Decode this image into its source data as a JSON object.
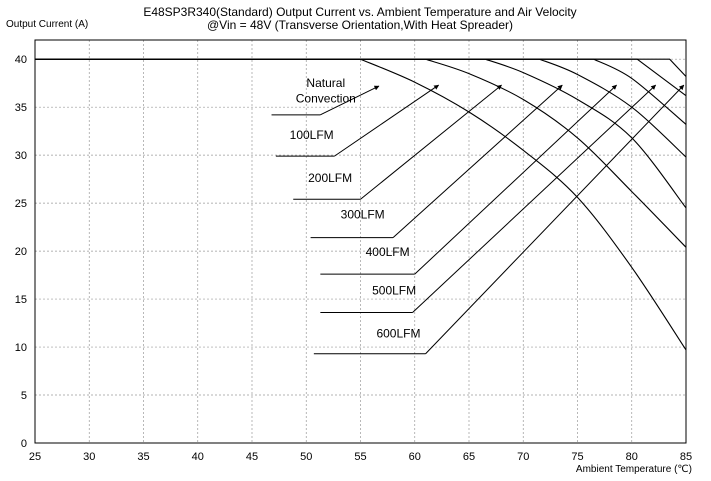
{
  "chart_data": {
    "type": "line",
    "title": "E48SP3R340(Standard)  Output Current vs. Ambient Temperature and Air Velocity",
    "subtitle": "@Vin = 48V (Transverse Orientation,With Heat Spreader)",
    "xlabel": "Ambient Temperature (℃)",
    "ylabel": "Output Current (A)",
    "xlim": [
      25,
      85
    ],
    "ylim": [
      0,
      42
    ],
    "x_ticks": [
      25,
      30,
      35,
      40,
      45,
      50,
      55,
      60,
      65,
      70,
      75,
      80,
      85
    ],
    "y_ticks": [
      0,
      5,
      10,
      15,
      20,
      25,
      30,
      35,
      40
    ],
    "grid": true,
    "legend": "none",
    "series": [
      {
        "name": "Natural Convection",
        "x": [
          25,
          55,
          60,
          65,
          70,
          75,
          80,
          85
        ],
        "y": [
          40,
          40,
          37.6,
          34.5,
          30.5,
          25.6,
          18.3,
          9.7
        ]
      },
      {
        "name": "100LFM",
        "x": [
          25,
          61,
          65,
          70,
          75,
          80,
          85
        ],
        "y": [
          40,
          40,
          38.5,
          35.8,
          31.8,
          26.2,
          20.4
        ]
      },
      {
        "name": "200LFM",
        "x": [
          25,
          66.5,
          70,
          75,
          80,
          85
        ],
        "y": [
          40,
          40,
          38.6,
          35.8,
          31.8,
          24.5
        ]
      },
      {
        "name": "300LFM",
        "x": [
          25,
          71.5,
          75,
          80,
          85
        ],
        "y": [
          40,
          40,
          38.4,
          35,
          29.8
        ]
      },
      {
        "name": "400LFM",
        "x": [
          25,
          76.5,
          80,
          85
        ],
        "y": [
          40,
          40,
          38,
          33.2
        ]
      },
      {
        "name": "500LFM",
        "x": [
          25,
          80.5,
          85
        ],
        "y": [
          40,
          40,
          36.2
        ]
      },
      {
        "name": "600LFM",
        "x": [
          25,
          83.5,
          85
        ],
        "y": [
          40,
          40,
          38.2
        ]
      }
    ],
    "annotations": [
      {
        "text_lines": [
          "Natural",
          "Convection"
        ],
        "text_x": 51.8,
        "text_y": [
          37.1,
          35.5
        ],
        "underline_x": [
          46.8,
          51.3
        ],
        "underline_y": 34.2,
        "leader_to": [
          56.7,
          37.2
        ]
      },
      {
        "text_lines": [
          "100LFM"
        ],
        "text_x": 50.5,
        "text_y": [
          31.7
        ],
        "underline_x": [
          47.2,
          52.6
        ],
        "underline_y": 29.9,
        "leader_to": [
          62.2,
          37.3
        ]
      },
      {
        "text_lines": [
          "200LFM"
        ],
        "text_x": 52.2,
        "text_y": [
          27.2
        ],
        "underline_x": [
          48.8,
          55.0
        ],
        "underline_y": 25.4,
        "leader_to": [
          68.0,
          37.3
        ]
      },
      {
        "text_lines": [
          "300LFM"
        ],
        "text_x": 55.2,
        "text_y": [
          23.4
        ],
        "underline_x": [
          50.4,
          58.0
        ],
        "underline_y": 21.4,
        "leader_to": [
          73.6,
          37.3
        ]
      },
      {
        "text_lines": [
          "400LFM"
        ],
        "text_x": 57.5,
        "text_y": [
          19.5
        ],
        "underline_x": [
          51.3,
          60.0
        ],
        "underline_y": 17.6,
        "leader_to": [
          78.6,
          37.3
        ]
      },
      {
        "text_lines": [
          "500LFM"
        ],
        "text_x": 58.1,
        "text_y": [
          15.5
        ],
        "underline_x": [
          51.3,
          59.8
        ],
        "underline_y": 13.6,
        "leader_to": [
          82.2,
          37.3
        ]
      },
      {
        "text_lines": [
          "600LFM"
        ],
        "text_x": 58.5,
        "text_y": [
          11.0
        ],
        "underline_x": [
          50.7,
          61.0
        ],
        "underline_y": 9.3,
        "leader_to": [
          84.8,
          37.3
        ]
      }
    ]
  }
}
